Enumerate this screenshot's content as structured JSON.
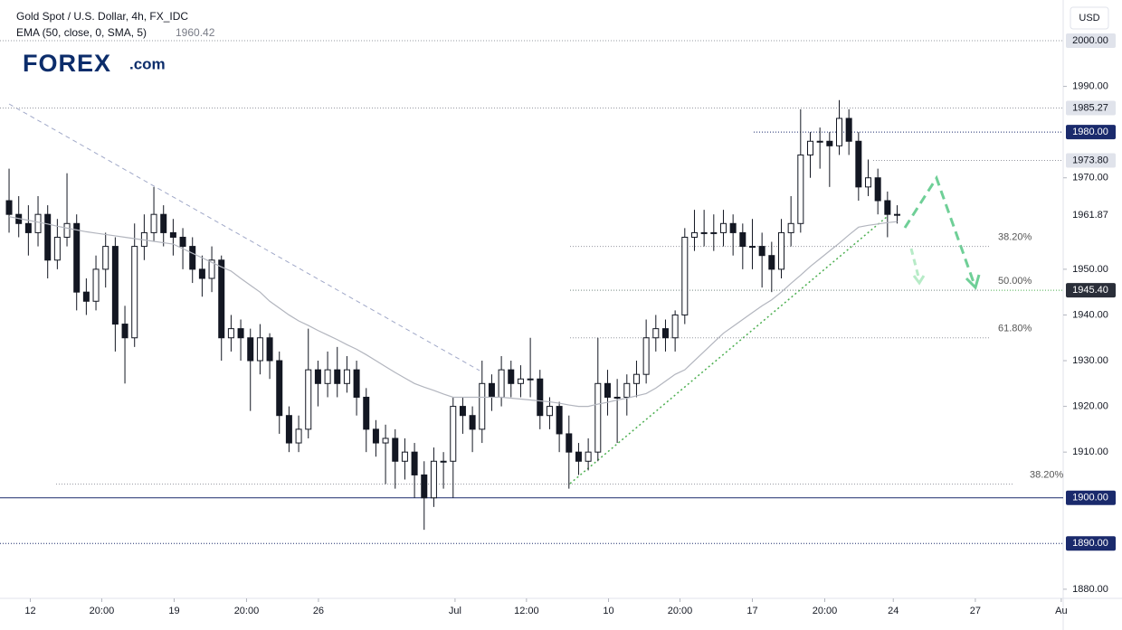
{
  "chart_data": {
    "type": "candlestick",
    "title": "Gold Spot / U.S. Dollar, 4h, FX_IDC",
    "indicator": "EMA (50, close, 0, SMA, 5)",
    "logo": "FOREX",
    "logo_suffix": ".com",
    "currency": "USD",
    "up_color": "#ffffff",
    "down_color": "#131722",
    "ylim": [
      1878,
      2008.9
    ],
    "xlim": [
      -0.94,
      109.2
    ],
    "yticks": [
      {
        "value": 1880,
        "label": "1880.00"
      },
      {
        "value": 1910,
        "label": "1910.00"
      },
      {
        "value": 1920,
        "label": "1920.00"
      },
      {
        "value": 1930,
        "label": "1930.00"
      },
      {
        "value": 1940,
        "label": "1940.00"
      },
      {
        "value": 1950,
        "label": "1950.00"
      },
      {
        "value": 1970,
        "label": "1970.00"
      },
      {
        "value": 1990,
        "label": "1990.00"
      }
    ],
    "xticks": [
      {
        "value": 2.2,
        "label": "12"
      },
      {
        "value": 9.6,
        "label": "20:00"
      },
      {
        "value": 17.1,
        "label": "19"
      },
      {
        "value": 24.6,
        "label": "20:00"
      },
      {
        "value": 32.05,
        "label": "26"
      },
      {
        "value": 46.2,
        "label": "Jul"
      },
      {
        "value": 53.6,
        "label": "12:00"
      },
      {
        "value": 62.1,
        "label": "10"
      },
      {
        "value": 69.5,
        "label": "20:00"
      },
      {
        "value": 77,
        "label": "17"
      },
      {
        "value": 84.5,
        "label": "20:00"
      },
      {
        "value": 91.6,
        "label": "24"
      },
      {
        "value": 100.1,
        "label": "27"
      },
      {
        "value": 109,
        "label": "Au"
      }
    ],
    "ohlc": [
      [
        1965,
        1972,
        1958,
        1962
      ],
      [
        1962,
        1966,
        1957,
        1960
      ],
      [
        1960,
        1964,
        1953,
        1958
      ],
      [
        1958,
        1966,
        1955,
        1962
      ],
      [
        1962,
        1964,
        1948,
        1952
      ],
      [
        1952,
        1961,
        1950,
        1957
      ],
      [
        1957,
        1971,
        1955,
        1960
      ],
      [
        1960,
        1962,
        1941,
        1945
      ],
      [
        1945,
        1948,
        1940,
        1943
      ],
      [
        1943,
        1953,
        1941,
        1950
      ],
      [
        1950,
        1958,
        1946,
        1955
      ],
      [
        1955,
        1957,
        1932,
        1938
      ],
      [
        1938,
        1942,
        1925,
        1935
      ],
      [
        1935,
        1960,
        1933,
        1955
      ],
      [
        1955,
        1962,
        1952,
        1958
      ],
      [
        1958,
        1968,
        1956,
        1962
      ],
      [
        1962,
        1964,
        1955,
        1958
      ],
      [
        1958,
        1961,
        1953,
        1957
      ],
      [
        1957,
        1959,
        1950,
        1955
      ],
      [
        1955,
        1957,
        1947,
        1950
      ],
      [
        1950,
        1953,
        1944,
        1948
      ],
      [
        1948,
        1955,
        1945,
        1952
      ],
      [
        1952,
        1953,
        1930,
        1935
      ],
      [
        1935,
        1940,
        1932,
        1937
      ],
      [
        1937,
        1939,
        1930,
        1935
      ],
      [
        1935,
        1937,
        1919,
        1930
      ],
      [
        1930,
        1938,
        1927,
        1935
      ],
      [
        1935,
        1936,
        1926,
        1930
      ],
      [
        1930,
        1932,
        1914,
        1918
      ],
      [
        1918,
        1920,
        1910,
        1912
      ],
      [
        1912,
        1918,
        1910,
        1915
      ],
      [
        1915,
        1937,
        1913,
        1928
      ],
      [
        1928,
        1930,
        1920,
        1925
      ],
      [
        1925,
        1932,
        1922,
        1928
      ],
      [
        1928,
        1933,
        1922,
        1925
      ],
      [
        1925,
        1931,
        1923,
        1928
      ],
      [
        1928,
        1930,
        1918,
        1922
      ],
      [
        1922,
        1924,
        1910,
        1915
      ],
      [
        1915,
        1917,
        1909,
        1912
      ],
      [
        1912,
        1916,
        1903,
        1913
      ],
      [
        1913,
        1915,
        1902,
        1908
      ],
      [
        1908,
        1913,
        1904,
        1910
      ],
      [
        1910,
        1912,
        1900,
        1905
      ],
      [
        1905,
        1908,
        1893,
        1900
      ],
      [
        1900,
        1911,
        1898,
        1908
      ],
      [
        1908,
        1910,
        1902,
        1908
      ],
      [
        1908,
        1922,
        1900,
        1920
      ],
      [
        1920,
        1922,
        1914,
        1918
      ],
      [
        1918,
        1920,
        1910,
        1915
      ],
      [
        1915,
        1930,
        1912,
        1925
      ],
      [
        1925,
        1927,
        1919,
        1922
      ],
      [
        1922,
        1931,
        1920,
        1928
      ],
      [
        1928,
        1930,
        1922,
        1925
      ],
      [
        1925,
        1929,
        1922,
        1926
      ],
      [
        1926,
        1935,
        1922,
        1926
      ],
      [
        1926,
        1928,
        1915,
        1918
      ],
      [
        1918,
        1922,
        1915,
        1920
      ],
      [
        1920,
        1921,
        1910,
        1914
      ],
      [
        1914,
        1918,
        1902,
        1910
      ],
      [
        1910,
        1912,
        1905,
        1908
      ],
      [
        1908,
        1913,
        1906,
        1910
      ],
      [
        1910,
        1935,
        1908,
        1925
      ],
      [
        1925,
        1928,
        1918,
        1922
      ],
      [
        1922,
        1926,
        1912,
        1922
      ],
      [
        1922,
        1927,
        1918,
        1925
      ],
      [
        1925,
        1930,
        1922,
        1927
      ],
      [
        1927,
        1939,
        1925,
        1935
      ],
      [
        1935,
        1940,
        1932,
        1937
      ],
      [
        1937,
        1939,
        1932,
        1935
      ],
      [
        1935,
        1941,
        1932,
        1940
      ],
      [
        1940,
        1959,
        1938,
        1957
      ],
      [
        1957,
        1963,
        1954,
        1958
      ],
      [
        1958,
        1963,
        1955,
        1958
      ],
      [
        1958,
        1962,
        1954,
        1958
      ],
      [
        1958,
        1963,
        1955,
        1960
      ],
      [
        1960,
        1962,
        1953,
        1958
      ],
      [
        1958,
        1960,
        1950,
        1955
      ],
      [
        1955,
        1961,
        1950,
        1955
      ],
      [
        1955,
        1958,
        1946,
        1953
      ],
      [
        1953,
        1956,
        1945,
        1950
      ],
      [
        1950,
        1961,
        1948,
        1958
      ],
      [
        1958,
        1966,
        1955,
        1960
      ],
      [
        1960,
        1985,
        1958,
        1975
      ],
      [
        1975,
        1980,
        1970,
        1978
      ],
      [
        1978,
        1981,
        1972,
        1978
      ],
      [
        1978,
        1980,
        1968,
        1977
      ],
      [
        1977,
        1987,
        1975,
        1983
      ],
      [
        1983,
        1985,
        1975,
        1978
      ],
      [
        1978,
        1980,
        1965,
        1968
      ],
      [
        1968,
        1974,
        1966,
        1970
      ],
      [
        1970,
        1972,
        1962,
        1965
      ],
      [
        1965,
        1967,
        1957,
        1962
      ],
      [
        1962,
        1964,
        1960,
        1961.87
      ]
    ],
    "ema": {
      "color": "#b2b5be",
      "values": [
        1961.5,
        1961.1,
        1960.7,
        1960.3,
        1959.9,
        1959.4,
        1959,
        1958.6,
        1958.2,
        1957.9,
        1957.6,
        1957.3,
        1957,
        1956.7,
        1956.4,
        1956.1,
        1955.8,
        1955.5,
        1954.5,
        1953.5,
        1952.5,
        1951.5,
        1950.5,
        1949.6,
        1948,
        1946.5,
        1945,
        1943,
        1941.5,
        1940,
        1938.7,
        1937.7,
        1936.6,
        1935.6,
        1934.6,
        1933.5,
        1932.5,
        1931.3,
        1930,
        1928.7,
        1927.4,
        1926.2,
        1925,
        1924.2,
        1923.5,
        1922.7,
        1922,
        1922,
        1922,
        1922,
        1922,
        1922,
        1921.8,
        1921.6,
        1921.4,
        1921.2,
        1921,
        1920.7,
        1920.3,
        1920,
        1920,
        1920.5,
        1920.9,
        1921.4,
        1921.8,
        1922.3,
        1922.8,
        1924,
        1925.5,
        1927,
        1928,
        1930,
        1932,
        1934,
        1936,
        1937.5,
        1939,
        1940.5,
        1942,
        1943.3,
        1945,
        1946.9,
        1948.7,
        1950.6,
        1952.3,
        1954,
        1955.7,
        1957.5,
        1959.2,
        1959.6,
        1959.9,
        1960.2,
        1960.42
      ]
    },
    "levels": [
      {
        "value": 2000,
        "label": "2000.00",
        "color": "#9598a1",
        "box": "#e0e3eb"
      },
      {
        "value": 1985.27,
        "label": "1985.27",
        "color": "#9598a1",
        "box": "#e0e3eb"
      },
      {
        "value": 1980,
        "label": "1980.00",
        "color": "#1a2a6c",
        "box": "#1a2a6c"
      },
      {
        "value": 1973.8,
        "label": "1973.80",
        "color": "#9598a1",
        "box": "#e0e3eb"
      },
      {
        "value": 1945.4,
        "label": "1945.40",
        "color": "#4caf50",
        "box": "#2a2e39"
      },
      {
        "value": 1900,
        "label": "1900.00",
        "color": "#1a2a6c",
        "box": "#1a2a6c"
      },
      {
        "value": 1890,
        "label": "1890.00",
        "color": "#1a2a6c",
        "box": "#1a2a6c"
      }
    ],
    "fib_levels": [
      {
        "value": 1955,
        "label": "38.20%"
      },
      {
        "value": 1945.4,
        "label": "50.00%"
      },
      {
        "value": 1935,
        "label": "61.80%"
      },
      {
        "value": 1903,
        "label": "38.20%"
      }
    ]
  }
}
